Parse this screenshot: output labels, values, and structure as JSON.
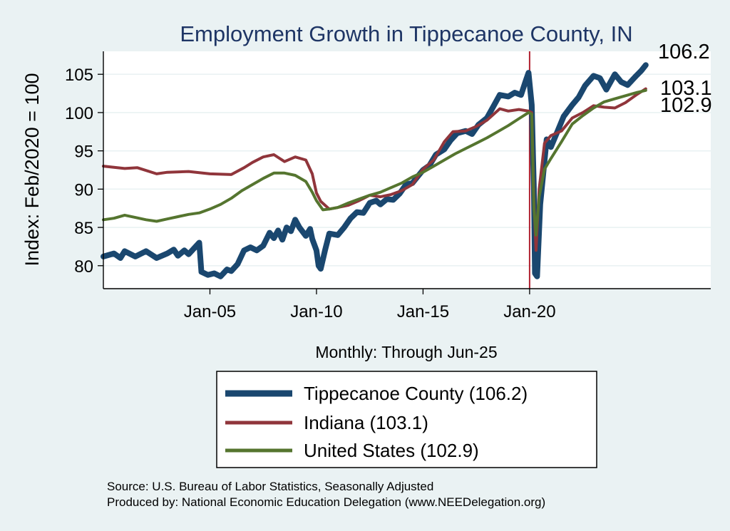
{
  "chart_data": {
    "type": "line",
    "title": "Employment Growth in Tippecanoe  County, IN",
    "ylabel": "Index: Feb/2020 = 100",
    "xlabel": "Monthly: Through Jun-25",
    "ylim": [
      77,
      108
    ],
    "xlim": [
      2000.0,
      2028.5
    ],
    "yticks": [
      80,
      85,
      90,
      95,
      100,
      105
    ],
    "xticks": [
      {
        "label": "Jan-05",
        "value": 2005.0
      },
      {
        "label": "Jan-10",
        "value": 2010.0
      },
      {
        "label": "Jan-15",
        "value": 2015.0
      },
      {
        "label": "Jan-20",
        "value": 2020.0
      }
    ],
    "reference_line": {
      "x": 2020.0,
      "color": "#b0202f"
    },
    "grid": true,
    "series": [
      {
        "name": "Tippecanoe  County (106.2)",
        "color": "#1a476f",
        "width": 8,
        "end_label": "106.2",
        "points": [
          [
            2000.0,
            81.2
          ],
          [
            2000.5,
            81.6
          ],
          [
            2000.8,
            81.0
          ],
          [
            2001.0,
            81.9
          ],
          [
            2001.5,
            81.2
          ],
          [
            2002.0,
            81.9
          ],
          [
            2002.5,
            81.0
          ],
          [
            2003.0,
            81.6
          ],
          [
            2003.3,
            82.1
          ],
          [
            2003.5,
            81.3
          ],
          [
            2003.8,
            82.0
          ],
          [
            2004.0,
            81.5
          ],
          [
            2004.3,
            82.4
          ],
          [
            2004.5,
            83.0
          ],
          [
            2004.6,
            79.2
          ],
          [
            2004.9,
            78.8
          ],
          [
            2005.2,
            79.0
          ],
          [
            2005.5,
            78.6
          ],
          [
            2005.8,
            79.5
          ],
          [
            2006.0,
            79.3
          ],
          [
            2006.3,
            80.2
          ],
          [
            2006.6,
            82.0
          ],
          [
            2006.9,
            82.4
          ],
          [
            2007.2,
            82.0
          ],
          [
            2007.5,
            82.6
          ],
          [
            2007.8,
            84.3
          ],
          [
            2008.0,
            83.6
          ],
          [
            2008.2,
            84.6
          ],
          [
            2008.4,
            83.4
          ],
          [
            2008.6,
            85.0
          ],
          [
            2008.8,
            84.5
          ],
          [
            2009.0,
            86.0
          ],
          [
            2009.2,
            85.0
          ],
          [
            2009.5,
            83.9
          ],
          [
            2009.7,
            84.8
          ],
          [
            2009.8,
            83.5
          ],
          [
            2010.0,
            82.0
          ],
          [
            2010.1,
            80.0
          ],
          [
            2010.2,
            79.6
          ],
          [
            2010.4,
            82.0
          ],
          [
            2010.6,
            84.2
          ],
          [
            2011.0,
            84.0
          ],
          [
            2011.3,
            85.0
          ],
          [
            2011.6,
            86.2
          ],
          [
            2011.9,
            87.0
          ],
          [
            2012.2,
            86.9
          ],
          [
            2012.5,
            88.2
          ],
          [
            2012.8,
            88.5
          ],
          [
            2013.0,
            88.0
          ],
          [
            2013.3,
            88.7
          ],
          [
            2013.6,
            88.6
          ],
          [
            2013.9,
            89.4
          ],
          [
            2014.2,
            90.6
          ],
          [
            2014.5,
            90.8
          ],
          [
            2015.0,
            92.5
          ],
          [
            2015.3,
            93.1
          ],
          [
            2015.6,
            94.5
          ],
          [
            2016.0,
            95.2
          ],
          [
            2016.3,
            96.4
          ],
          [
            2016.6,
            97.3
          ],
          [
            2017.0,
            97.6
          ],
          [
            2017.3,
            97.2
          ],
          [
            2017.6,
            98.4
          ],
          [
            2018.0,
            99.3
          ],
          [
            2018.3,
            100.8
          ],
          [
            2018.6,
            102.3
          ],
          [
            2019.0,
            102.1
          ],
          [
            2019.3,
            102.6
          ],
          [
            2019.6,
            102.3
          ],
          [
            2019.8,
            104.0
          ],
          [
            2019.95,
            105.2
          ],
          [
            2020.1,
            101.0
          ],
          [
            2020.2,
            90.0
          ],
          [
            2020.25,
            79.0
          ],
          [
            2020.35,
            78.6
          ],
          [
            2020.5,
            88.0
          ],
          [
            2020.8,
            96.5
          ],
          [
            2021.0,
            95.5
          ],
          [
            2021.3,
            97.5
          ],
          [
            2021.6,
            99.5
          ],
          [
            2022.0,
            101.0
          ],
          [
            2022.3,
            102.0
          ],
          [
            2022.6,
            103.5
          ],
          [
            2023.0,
            104.8
          ],
          [
            2023.3,
            104.5
          ],
          [
            2023.6,
            103.0
          ],
          [
            2024.0,
            105.0
          ],
          [
            2024.3,
            104.0
          ],
          [
            2024.6,
            103.6
          ],
          [
            2025.0,
            104.8
          ],
          [
            2025.25,
            105.5
          ],
          [
            2025.45,
            106.2
          ]
        ]
      },
      {
        "name": "Indiana (103.1)",
        "color": "#90353b",
        "width": 4,
        "end_label": "103.1",
        "points": [
          [
            2000.0,
            93.0
          ],
          [
            2001.0,
            92.7
          ],
          [
            2001.6,
            92.8
          ],
          [
            2002.5,
            92.0
          ],
          [
            2003.0,
            92.2
          ],
          [
            2004.0,
            92.3
          ],
          [
            2005.0,
            92.0
          ],
          [
            2006.0,
            91.9
          ],
          [
            2006.6,
            92.8
          ],
          [
            2007.0,
            93.5
          ],
          [
            2007.5,
            94.2
          ],
          [
            2008.0,
            94.5
          ],
          [
            2008.5,
            93.6
          ],
          [
            2009.0,
            94.2
          ],
          [
            2009.5,
            93.8
          ],
          [
            2009.8,
            92.0
          ],
          [
            2010.0,
            89.5
          ],
          [
            2010.2,
            88.4
          ],
          [
            2010.6,
            87.4
          ],
          [
            2011.0,
            87.6
          ],
          [
            2011.5,
            87.9
          ],
          [
            2012.0,
            88.5
          ],
          [
            2012.5,
            89.2
          ],
          [
            2013.0,
            89.0
          ],
          [
            2013.5,
            89.3
          ],
          [
            2014.0,
            89.8
          ],
          [
            2014.5,
            90.6
          ],
          [
            2015.0,
            92.6
          ],
          [
            2015.5,
            93.8
          ],
          [
            2016.0,
            96.2
          ],
          [
            2016.4,
            97.5
          ],
          [
            2017.0,
            97.6
          ],
          [
            2017.5,
            98.2
          ],
          [
            2018.0,
            99.0
          ],
          [
            2018.6,
            100.5
          ],
          [
            2019.0,
            100.2
          ],
          [
            2019.5,
            100.4
          ],
          [
            2019.95,
            100.2
          ],
          [
            2020.1,
            100.0
          ],
          [
            2020.2,
            88.5
          ],
          [
            2020.3,
            82.0
          ],
          [
            2020.45,
            90.0
          ],
          [
            2020.7,
            96.0
          ],
          [
            2021.0,
            97.0
          ],
          [
            2021.5,
            97.6
          ],
          [
            2022.0,
            99.3
          ],
          [
            2022.5,
            100.0
          ],
          [
            2023.0,
            100.9
          ],
          [
            2023.5,
            100.7
          ],
          [
            2024.0,
            100.6
          ],
          [
            2024.5,
            101.3
          ],
          [
            2025.0,
            102.3
          ],
          [
            2025.45,
            103.1
          ]
        ]
      },
      {
        "name": "United States (102.9)",
        "color": "#55752f",
        "width": 4,
        "end_label": "102.9",
        "points": [
          [
            2000.0,
            86.0
          ],
          [
            2000.5,
            86.2
          ],
          [
            2001.0,
            86.6
          ],
          [
            2001.5,
            86.3
          ],
          [
            2002.0,
            86.0
          ],
          [
            2002.5,
            85.8
          ],
          [
            2003.0,
            86.1
          ],
          [
            2003.5,
            86.4
          ],
          [
            2004.0,
            86.7
          ],
          [
            2004.5,
            86.9
          ],
          [
            2005.0,
            87.4
          ],
          [
            2005.5,
            88.0
          ],
          [
            2006.0,
            88.8
          ],
          [
            2006.5,
            89.8
          ],
          [
            2007.0,
            90.6
          ],
          [
            2007.5,
            91.4
          ],
          [
            2008.0,
            92.1
          ],
          [
            2008.5,
            92.1
          ],
          [
            2009.0,
            91.8
          ],
          [
            2009.5,
            91.0
          ],
          [
            2009.8,
            89.6
          ],
          [
            2010.0,
            88.5
          ],
          [
            2010.3,
            87.3
          ],
          [
            2010.6,
            87.4
          ],
          [
            2011.0,
            87.6
          ],
          [
            2011.5,
            88.2
          ],
          [
            2012.0,
            88.7
          ],
          [
            2012.5,
            89.2
          ],
          [
            2013.0,
            89.6
          ],
          [
            2013.5,
            90.2
          ],
          [
            2014.0,
            90.8
          ],
          [
            2014.5,
            91.6
          ],
          [
            2015.0,
            92.2
          ],
          [
            2015.5,
            93.0
          ],
          [
            2016.0,
            93.8
          ],
          [
            2016.5,
            94.6
          ],
          [
            2017.0,
            95.3
          ],
          [
            2017.5,
            96.0
          ],
          [
            2018.0,
            96.7
          ],
          [
            2018.5,
            97.5
          ],
          [
            2019.0,
            98.3
          ],
          [
            2019.5,
            99.2
          ],
          [
            2019.95,
            100.0
          ],
          [
            2020.1,
            99.8
          ],
          [
            2020.2,
            87.5
          ],
          [
            2020.3,
            84.0
          ],
          [
            2020.45,
            89.0
          ],
          [
            2020.7,
            92.6
          ],
          [
            2021.0,
            94.0
          ],
          [
            2021.5,
            96.2
          ],
          [
            2022.0,
            98.5
          ],
          [
            2022.5,
            99.6
          ],
          [
            2023.0,
            100.6
          ],
          [
            2023.5,
            101.4
          ],
          [
            2024.0,
            101.8
          ],
          [
            2024.5,
            102.2
          ],
          [
            2025.0,
            102.6
          ],
          [
            2025.45,
            102.9
          ]
        ]
      }
    ]
  },
  "notes": {
    "source": "Source: U.S. Bureau of Labor Statistics, Seasonally Adjusted",
    "producer": "Produced by: National Economic Education Delegation (www.NEEDelegation.org)"
  }
}
